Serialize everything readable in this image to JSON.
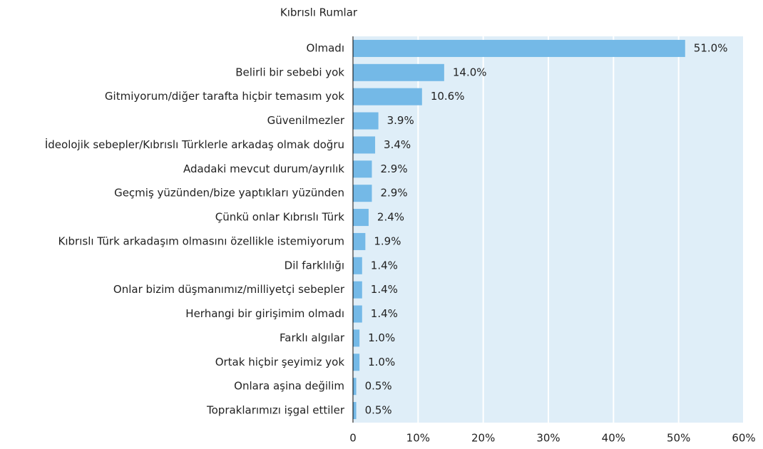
{
  "chart_data": {
    "type": "bar",
    "orientation": "horizontal",
    "title": "Kıbrıslı Rumlar",
    "categories": [
      "Olmadı",
      "Belirli bir sebebi yok",
      "Gitmiyorum/diğer tarafta hiçbir temasım yok",
      "Güvenilmezler",
      "İdeolojik sebepler/Kıbrıslı Türklerle arkadaş olmak doğru",
      "Adadaki mevcut durum/ayrılık",
      "Geçmiş yüzünden/bize yaptıkları yüzünden",
      "Çünkü onlar Kıbrıslı Türk",
      "Kıbrıslı Türk arkadaşım olmasını özellikle istemiyorum",
      "Dil farklılığı",
      "Onlar bizim düşmanımız/milliyetçi sebepler",
      "Herhangi bir girişimim olmadı",
      "Farklı algılar",
      "Ortak hiçbir şeyimiz yok",
      "Onlara aşina değilim",
      "Topraklarımızı işgal ettiler"
    ],
    "values": [
      51.0,
      14.0,
      10.6,
      3.9,
      3.4,
      2.9,
      2.9,
      2.4,
      1.9,
      1.4,
      1.4,
      1.4,
      1.0,
      1.0,
      0.5,
      0.5
    ],
    "value_labels": [
      "51.0%",
      "14.0%",
      "10.6%",
      "3.9%",
      "3.4%",
      "2.9%",
      "2.9%",
      "2.4%",
      "1.9%",
      "1.4%",
      "1.4%",
      "1.4%",
      "1.0%",
      "1.0%",
      "0.5%",
      "0.5%"
    ],
    "color": "#74b9e7",
    "xlim": [
      0,
      60
    ],
    "xticks": [
      0,
      {
        "value": 10,
        "label": "10%"
      },
      {
        "value": 20,
        "label": "20%"
      },
      {
        "value": 30,
        "label": "30%"
      },
      {
        "value": 40,
        "label": "40%"
      },
      {
        "value": 50,
        "label": "50%"
      },
      {
        "value": 60,
        "label": "60%"
      }
    ],
    "grid": true
  }
}
